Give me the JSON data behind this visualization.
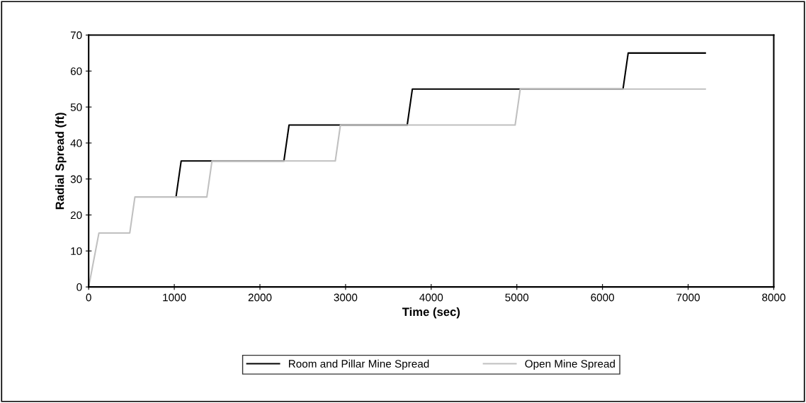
{
  "chart_data": {
    "type": "line",
    "xlabel": "Time (sec)",
    "ylabel": "Radial Spread (ft)",
    "xlim": [
      0,
      8000
    ],
    "xticks": [
      0,
      1000,
      2000,
      3000,
      4000,
      5000,
      6000,
      7000,
      8000
    ],
    "ylim": [
      0,
      70
    ],
    "yticks": [
      0,
      10,
      20,
      30,
      40,
      50,
      60,
      70
    ],
    "grid": false,
    "legend": "bottom",
    "marker": "none",
    "line_style": "solid",
    "series": [
      {
        "name": "Room and Pillar Mine Spread",
        "color": "#000000",
        "x": [
          0,
          120,
          480,
          540,
          1020,
          1080,
          2280,
          2340,
          3720,
          3780,
          6240,
          6300,
          7200
        ],
        "values": [
          0,
          null,
          null,
          null,
          25,
          35,
          35,
          45,
          45,
          55,
          55,
          65,
          65
        ]
      },
      {
        "name": "Open Mine Spread",
        "color": "#c0c0c0",
        "x": [
          0,
          120,
          480,
          540,
          1380,
          1440,
          2880,
          2940,
          4980,
          5040,
          7200
        ],
        "values": [
          0,
          15,
          15,
          25,
          25,
          35,
          35,
          45,
          45,
          55,
          55
        ]
      }
    ]
  }
}
